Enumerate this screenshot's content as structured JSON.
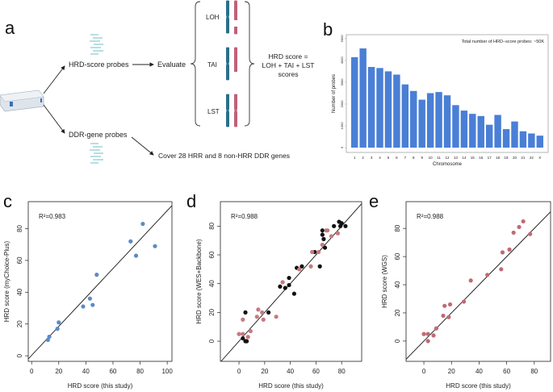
{
  "panel_letters": {
    "a": "a",
    "b": "b",
    "c": "c",
    "d": "d",
    "e": "e"
  },
  "panel_a": {
    "hrd_probes": "HRD-score probes",
    "ddr_probes": "DDR-gene probes",
    "evaluate": "Evaluate",
    "loh": "LOH",
    "tai": "TAI",
    "lst": "LST",
    "formula_line1": "HRD score =",
    "formula_line2": "LOH + TAI + LST",
    "formula_line3": "scores",
    "cover": "Cover 28 HRR and 8 non-HRR DDR genes",
    "colors": {
      "teal": "#2a6f8a",
      "pink": "#c0607a",
      "probe": "#5fb8c0"
    }
  },
  "chart_data": [
    {
      "type": "bar",
      "annotation": "Total number of HRD−score probes: ~50K",
      "xlabel": "Chromosome",
      "ylabel": "Number of probes",
      "categories": [
        "1",
        "2",
        "3",
        "4",
        "5",
        "6",
        "7",
        "8",
        "9",
        "10",
        "11",
        "12",
        "13",
        "14",
        "15",
        "16",
        "17",
        "18",
        "19",
        "20",
        "21",
        "22",
        "X"
      ],
      "values": [
        4150,
        4550,
        3700,
        3650,
        3500,
        3350,
        2900,
        2600,
        2200,
        2500,
        2550,
        2400,
        1950,
        1700,
        1550,
        1450,
        1050,
        1500,
        850,
        1200,
        750,
        650,
        550
      ],
      "yticks": [
        0,
        1000,
        2000,
        3000,
        4000,
        5000
      ],
      "ylim": [
        0,
        5200
      ],
      "color": "#4a7fd6"
    },
    {
      "type": "scatter",
      "annotation": "R²=0.983",
      "xlabel": "HRD score (this study)",
      "ylabel": "HRD score (myChoice-Plus)",
      "xticks": [
        0,
        20,
        40,
        60,
        80,
        100
      ],
      "yticks": [
        0,
        20,
        40,
        60,
        80
      ],
      "xlim": [
        -2.5,
        103.5
      ],
      "ylim": [
        -3.5,
        97
      ],
      "fit": {
        "slope": 0.91,
        "intercept": 0.3
      },
      "series": [
        {
          "name": "samples",
          "color": "#5b8bc7",
          "points": [
            [
              12,
              10
            ],
            [
              13,
              12
            ],
            [
              19,
              17
            ],
            [
              20,
              21
            ],
            [
              38,
              31
            ],
            [
              43,
              36
            ],
            [
              45,
              32
            ],
            [
              48,
              51
            ],
            [
              73,
              72
            ],
            [
              77,
              63
            ],
            [
              82,
              83
            ],
            [
              91,
              69
            ]
          ]
        }
      ]
    },
    {
      "type": "scatter",
      "annotation": "R²=0.988",
      "xlabel": "HRD score (this study)",
      "ylabel": "HRD score (WES+Backbone)",
      "xticks": [
        0,
        20,
        40,
        60,
        80
      ],
      "yticks": [
        0,
        20,
        40,
        60,
        80
      ],
      "xlim": [
        -14.5,
        95.6
      ],
      "ylim": [
        -14,
        97
      ],
      "fit": {
        "slope": 1,
        "intercept": 0
      },
      "series": [
        {
          "name": "black",
          "color": "#111111",
          "points": [
            [
              3,
              2
            ],
            [
              5,
              0
            ],
            [
              6,
              0
            ],
            [
              5,
              20
            ],
            [
              23,
              20
            ],
            [
              32,
              38
            ],
            [
              36,
              37
            ],
            [
              39,
              39
            ],
            [
              39,
              44
            ],
            [
              43,
              33
            ],
            [
              45,
              51
            ],
            [
              49,
              52
            ],
            [
              59,
              62
            ],
            [
              63,
              52
            ],
            [
              65,
              74
            ],
            [
              65,
              77
            ],
            [
              66,
              71
            ],
            [
              67,
              65
            ],
            [
              74,
              80
            ],
            [
              78,
              83
            ],
            [
              79,
              80
            ],
            [
              80,
              82
            ],
            [
              83,
              80
            ]
          ]
        },
        {
          "name": "red",
          "color": "#c57a80",
          "points": [
            [
              0,
              5
            ],
            [
              3,
              15
            ],
            [
              3,
              5
            ],
            [
              7,
              3
            ],
            [
              9,
              7
            ],
            [
              14,
              17
            ],
            [
              15,
              22
            ],
            [
              18,
              20
            ],
            [
              19,
              15
            ],
            [
              29,
              17
            ],
            [
              34,
              41
            ],
            [
              47,
              50
            ],
            [
              56,
              52
            ],
            [
              57,
              62
            ],
            [
              62,
              62
            ],
            [
              65,
              67
            ],
            [
              68,
              77
            ],
            [
              69,
              77
            ],
            [
              72,
              73
            ],
            [
              77,
              75
            ]
          ]
        }
      ]
    },
    {
      "type": "scatter",
      "annotation": "R²=0.988",
      "xlabel": "HRD score (this study)",
      "ylabel": "HRD score (WGS)",
      "xticks": [
        0,
        20,
        40,
        60,
        80
      ],
      "yticks": [
        0,
        20,
        40,
        60,
        80
      ],
      "xlim": [
        -12.9,
        91.8
      ],
      "ylim": [
        -14.4,
        99
      ],
      "fit": {
        "slope": 1,
        "intercept": 0
      },
      "series": [
        {
          "name": "red",
          "color": "#c06a74",
          "points": [
            [
              0,
              5
            ],
            [
              3,
              5
            ],
            [
              3,
              0
            ],
            [
              7,
              4
            ],
            [
              9,
              9
            ],
            [
              14,
              18
            ],
            [
              15,
              25
            ],
            [
              18,
              17
            ],
            [
              19,
              26
            ],
            [
              29,
              28
            ],
            [
              34,
              43
            ],
            [
              46,
              47
            ],
            [
              56,
              51
            ],
            [
              57,
              63
            ],
            [
              62,
              65
            ],
            [
              65,
              77
            ],
            [
              69,
              81
            ],
            [
              72,
              85
            ],
            [
              77,
              76
            ]
          ]
        }
      ]
    }
  ]
}
